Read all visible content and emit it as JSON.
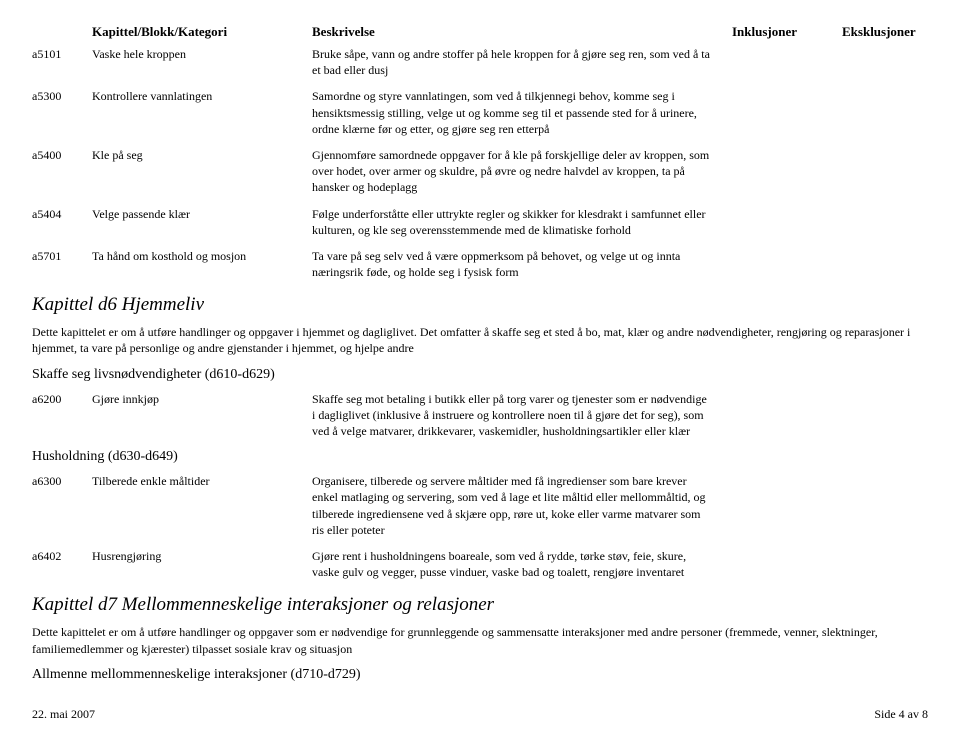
{
  "header": {
    "col1": "Kapittel/Blokk/Kategori",
    "col2": "Beskrivelse",
    "col3": "Inklusjoner",
    "col4": "Eksklusjoner"
  },
  "entries1": [
    {
      "code": "a5101",
      "title": "Vaske hele kroppen",
      "desc": "Bruke såpe, vann og andre stoffer på hele kroppen for å gjøre seg ren, som ved å ta et bad eller dusj"
    },
    {
      "code": "a5300",
      "title": "Kontrollere vannlatingen",
      "desc": "Samordne og styre vannlatingen, som ved å tilkjennegi behov, komme seg i hensiktsmessig stilling, velge ut og komme seg til et passende sted for å urinere, ordne klærne før og etter, og gjøre seg ren etterpå"
    },
    {
      "code": "a5400",
      "title": "Kle på seg",
      "desc": "Gjennomføre samordnede oppgaver for å kle på forskjellige deler av kroppen, som over hodet, over armer og skuldre, på øvre og nedre halvdel av kroppen, ta på hansker og hodeplagg"
    },
    {
      "code": "a5404",
      "title": "Velge passende klær",
      "desc": "Følge underforståtte eller uttrykte regler og skikker for klesdrakt i samfunnet eller kulturen, og kle seg overensstemmende med de klimatiske forhold"
    },
    {
      "code": "a5701",
      "title": "Ta hånd om kosthold og mosjon",
      "desc": "Ta vare på seg selv ved å være oppmerksom på behovet, og velge ut og innta næringsrik føde, og holde seg i fysisk form"
    }
  ],
  "chapter1": {
    "heading": "Kapittel d6 Hjemmeliv",
    "intro": "Dette kapittelet er om å utføre handlinger og oppgaver i hjemmet og dagliglivet. Det omfatter å skaffe seg et sted å bo, mat, klær og andre nødvendigheter, rengjøring og reparasjoner i hjemmet, ta vare på personlige og andre gjenstander i hjemmet, og hjelpe andre"
  },
  "subsection1": "Skaffe seg livsnødvendigheter (d610-d629)",
  "entries2": [
    {
      "code": "a6200",
      "title": "Gjøre innkjøp",
      "desc": "Skaffe seg mot betaling i butikk eller på torg varer og tjenester som er nødvendige i dagliglivet (inklusive å instruere og kontrollere noen til å gjøre det for seg), som ved å velge matvarer, drikkevarer, vaskemidler, husholdningsartikler eller klær"
    }
  ],
  "subsection2": "Husholdning (d630-d649)",
  "entries3": [
    {
      "code": "a6300",
      "title": "Tilberede enkle måltider",
      "desc": "Organisere, tilberede og servere måltider med få ingredienser som bare krever enkel matlaging og servering, som ved å lage et lite måltid eller mellommåltid, og tilberede ingrediensene ved å skjære opp, røre ut, koke eller varme matvarer som ris eller poteter"
    },
    {
      "code": "a6402",
      "title": "Husrengjøring",
      "desc": "Gjøre rent i husholdningens boareale, som ved å rydde, tørke støv, feie, skure, vaske gulv og vegger, pusse vinduer, vaske bad og toalett, rengjøre inventaret"
    }
  ],
  "chapter2": {
    "heading": "Kapittel d7 Mellommenneskelige interaksjoner og relasjoner",
    "intro": "Dette kapittelet er om å utføre handlinger og oppgaver som er nødvendige for grunnleggende og sammensatte interaksjoner med andre personer (fremmede, venner, slektninger, familiemedlemmer og kjærester) tilpasset sosiale krav og situasjon"
  },
  "subsection3": "Allmenne mellommenneskelige interaksjoner (d710-d729)",
  "footer": {
    "left": "22. mai 2007",
    "right": "Side 4 av 8"
  }
}
